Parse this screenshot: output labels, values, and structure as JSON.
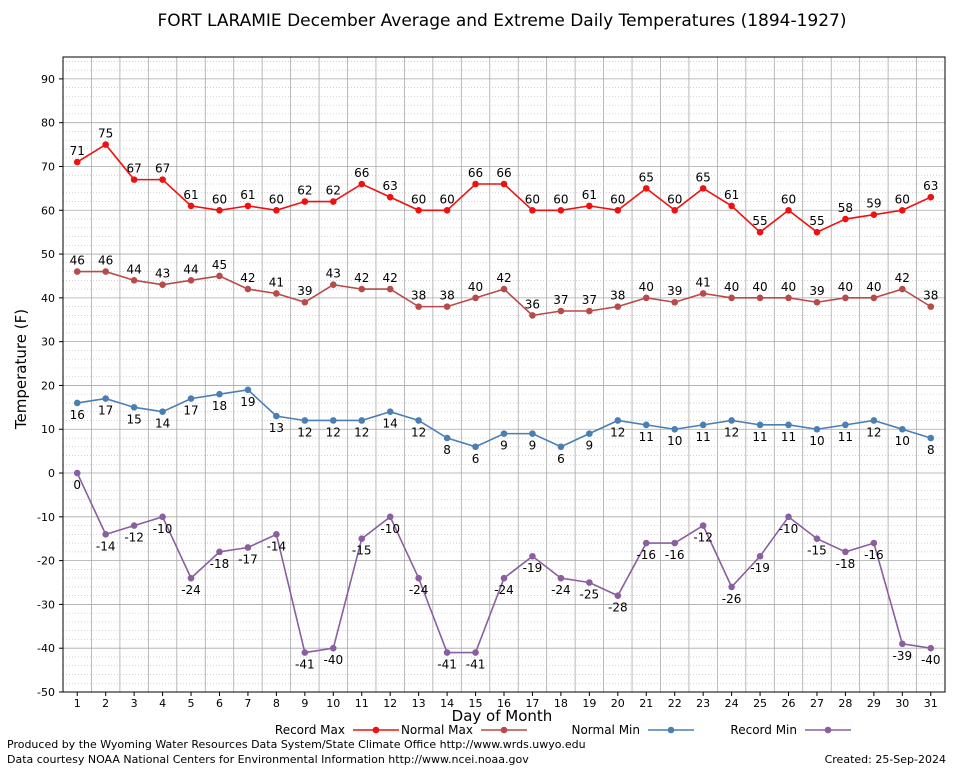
{
  "chart_data": {
    "type": "line",
    "title": "FORT LARAMIE December Average and Extreme Daily Temperatures (1894-1927)",
    "xlabel": "Day of Month",
    "ylabel": "Temperature (F)",
    "ylim": [
      -50,
      95
    ],
    "yticks": [
      -50,
      -40,
      -30,
      -20,
      -10,
      0,
      10,
      20,
      30,
      40,
      50,
      60,
      70,
      80,
      90
    ],
    "x": [
      1,
      2,
      3,
      4,
      5,
      6,
      7,
      8,
      9,
      10,
      11,
      12,
      13,
      14,
      15,
      16,
      17,
      18,
      19,
      20,
      21,
      22,
      23,
      24,
      25,
      26,
      27,
      28,
      29,
      30,
      31
    ],
    "grid": true,
    "series": [
      {
        "name": "Record Max",
        "color": "#ee1111",
        "label_position": "above",
        "values": [
          71,
          75,
          67,
          67,
          61,
          60,
          61,
          60,
          62,
          62,
          66,
          63,
          60,
          60,
          66,
          66,
          60,
          60,
          61,
          60,
          65,
          60,
          65,
          61,
          55,
          60,
          55,
          58,
          59,
          60,
          63
        ]
      },
      {
        "name": "Normal Max",
        "color": "#b84a4a",
        "label_position": "above",
        "values": [
          46,
          46,
          44,
          43,
          44,
          45,
          42,
          41,
          39,
          43,
          42,
          42,
          38,
          38,
          40,
          42,
          36,
          37,
          37,
          38,
          40,
          39,
          41,
          40,
          40,
          40,
          39,
          40,
          40,
          42,
          38
        ]
      },
      {
        "name": "Normal Min",
        "color": "#4a7fb4",
        "label_position": "below",
        "values": [
          16,
          17,
          15,
          14,
          17,
          18,
          19,
          13,
          12,
          12,
          12,
          14,
          12,
          8,
          6,
          9,
          9,
          6,
          9,
          12,
          11,
          10,
          11,
          12,
          11,
          11,
          10,
          11,
          12,
          10,
          8
        ]
      },
      {
        "name": "Record Min",
        "color": "#8a5fa0",
        "label_position": "below",
        "values": [
          0,
          -14,
          -12,
          -10,
          -24,
          -18,
          -17,
          -14,
          -41,
          -40,
          -15,
          -10,
          -24,
          -41,
          -41,
          -24,
          -19,
          -24,
          -25,
          -28,
          -16,
          -16,
          -12,
          -26,
          -19,
          -10,
          -15,
          -18,
          -16,
          -39,
          -40
        ]
      }
    ]
  },
  "footer": {
    "produced_by": "Produced by the Wyoming Water Resources Data System/State Climate Office http://www.wrds.uwyo.edu",
    "data_courtesy": "Data courtesy NOAA National Centers for Environmental Information http://www.ncei.noaa.gov",
    "created": "Created:  25-Sep-2024"
  }
}
